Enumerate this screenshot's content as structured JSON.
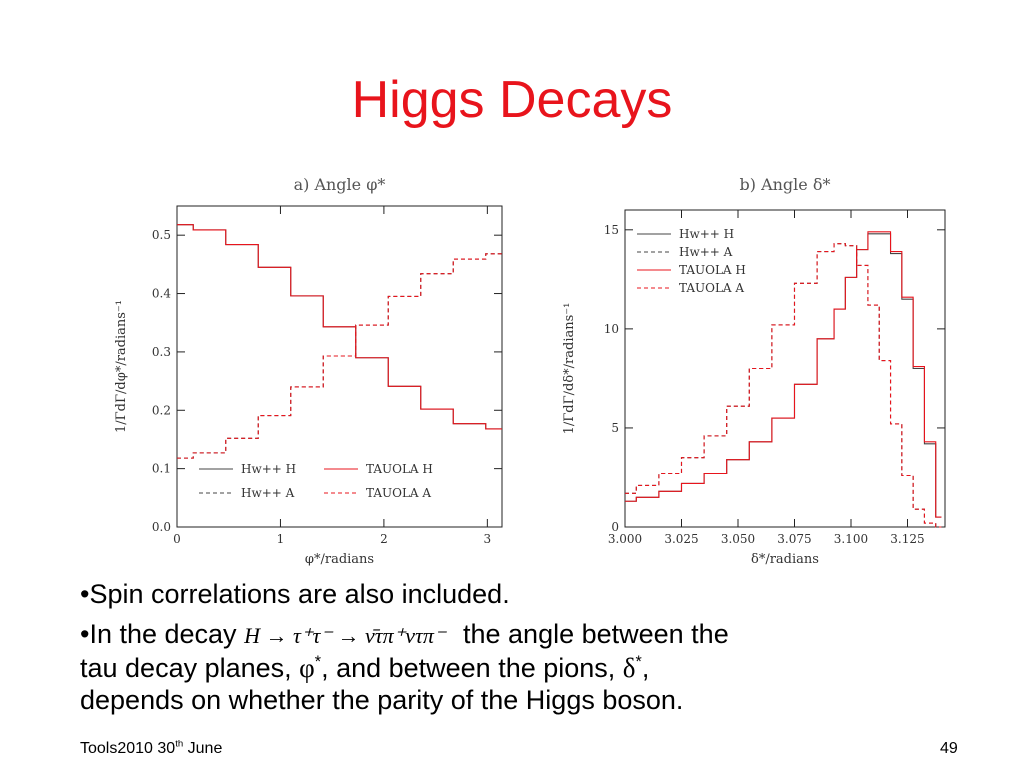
{
  "slide": {
    "title": "Higgs Decays",
    "footer": {
      "event": "Tools2010 30",
      "sup": "th",
      "date": " June",
      "page": "49"
    },
    "bullets": {
      "b1": "•Spin correlations are also included.",
      "b2_pre": "•In the decay",
      "b2_formula": "H → τ⁺τ⁻ → ν̄τπ⁺ντπ⁻",
      "b2_post": "the angle between the",
      "b3_pre": "tau decay planes, ",
      "phi": "φ",
      "star": "*",
      "b3_mid": ", and between the pions, ",
      "delta": "δ",
      "b3_end": ",",
      "b4": "depends on whether the parity of the Higgs boson."
    }
  },
  "chart_data": [
    {
      "type": "line",
      "title": "a) Angle φ*",
      "xlabel": "φ*/radians",
      "ylabel": "1/ΓdΓ/dφ*/radians⁻¹",
      "xlim": [
        0,
        3.1416
      ],
      "ylim": [
        0,
        0.55
      ],
      "xticks": [
        "0",
        "1",
        "2",
        "3"
      ],
      "xtick_values": [
        0,
        1,
        2,
        3
      ],
      "yticks": [
        "0.0",
        "0.1",
        "0.2",
        "0.3",
        "0.4",
        "0.5"
      ],
      "ytick_values": [
        0,
        0.1,
        0.2,
        0.3,
        0.4,
        0.5
      ],
      "legend": [
        "Hw++ H",
        "Hw++ A",
        "TAUOLA H",
        "TAUOLA A"
      ],
      "legend_position": "bottom",
      "x": [
        0,
        0.3142,
        0.6283,
        0.9425,
        1.2566,
        1.5708,
        1.885,
        2.1991,
        2.5133,
        2.8274,
        3.1416
      ],
      "series": [
        {
          "name": "Hw++ H",
          "color": "#444444",
          "dash": "solid",
          "values": [
            0.518,
            0.509,
            0.484,
            0.445,
            0.396,
            0.343,
            0.29,
            0.241,
            0.202,
            0.177,
            0.168
          ]
        },
        {
          "name": "Hw++ A",
          "color": "#444444",
          "dash": "dashed",
          "values": [
            0.118,
            0.127,
            0.152,
            0.191,
            0.24,
            0.293,
            0.346,
            0.395,
            0.434,
            0.459,
            0.468
          ]
        },
        {
          "name": "TAUOLA H",
          "color": "#e8141c",
          "dash": "solid",
          "values": [
            0.518,
            0.509,
            0.484,
            0.445,
            0.396,
            0.343,
            0.29,
            0.241,
            0.202,
            0.177,
            0.168
          ]
        },
        {
          "name": "TAUOLA A",
          "color": "#e8141c",
          "dash": "dashed",
          "values": [
            0.118,
            0.127,
            0.152,
            0.191,
            0.24,
            0.293,
            0.346,
            0.395,
            0.434,
            0.459,
            0.468
          ]
        }
      ]
    },
    {
      "type": "line",
      "title": "b) Angle δ*",
      "xlabel": "δ*/radians",
      "ylabel": "1/ΓdΓ/dδ*/radians⁻¹",
      "xlim": [
        3.0,
        3.1416
      ],
      "ylim": [
        0,
        16
      ],
      "xticks": [
        "3.000",
        "3.025",
        "3.050",
        "3.075",
        "3.100",
        "3.125"
      ],
      "xtick_values": [
        3.0,
        3.025,
        3.05,
        3.075,
        3.1,
        3.125
      ],
      "yticks": [
        "0",
        "5",
        "10",
        "15"
      ],
      "ytick_values": [
        0,
        5,
        10,
        15
      ],
      "legend": [
        "Hw++ H",
        "Hw++ A",
        "TAUOLA H",
        "TAUOLA A"
      ],
      "legend_position": "top-left",
      "x": [
        3.0,
        3.01,
        3.02,
        3.03,
        3.04,
        3.05,
        3.06,
        3.07,
        3.08,
        3.09,
        3.095,
        3.1,
        3.105,
        3.11,
        3.115,
        3.12,
        3.125,
        3.13,
        3.135,
        3.14
      ],
      "series": [
        {
          "name": "Hw++ H",
          "color": "#444444",
          "dash": "solid",
          "values": [
            1.3,
            1.5,
            1.8,
            2.2,
            2.7,
            3.4,
            4.3,
            5.5,
            7.2,
            9.5,
            11.0,
            12.6,
            14.0,
            14.8,
            14.8,
            13.8,
            11.5,
            8.0,
            4.2,
            0.5
          ]
        },
        {
          "name": "Hw++ A",
          "color": "#444444",
          "dash": "dashed",
          "values": [
            1.7,
            2.1,
            2.7,
            3.5,
            4.6,
            6.1,
            8.0,
            10.2,
            12.3,
            13.9,
            14.3,
            14.2,
            13.2,
            11.2,
            8.4,
            5.2,
            2.6,
            0.9,
            0.2,
            0.0
          ]
        },
        {
          "name": "TAUOLA H",
          "color": "#e8141c",
          "dash": "solid",
          "values": [
            1.3,
            1.5,
            1.8,
            2.2,
            2.7,
            3.4,
            4.3,
            5.5,
            7.2,
            9.5,
            11.0,
            12.6,
            14.0,
            14.9,
            14.9,
            13.9,
            11.6,
            8.1,
            4.3,
            0.5
          ]
        },
        {
          "name": "TAUOLA A",
          "color": "#e8141c",
          "dash": "dashed",
          "values": [
            1.7,
            2.1,
            2.7,
            3.5,
            4.6,
            6.1,
            8.0,
            10.2,
            12.3,
            13.9,
            14.3,
            14.2,
            13.2,
            11.2,
            8.4,
            5.2,
            2.6,
            0.9,
            0.2,
            0.0
          ]
        }
      ]
    }
  ]
}
